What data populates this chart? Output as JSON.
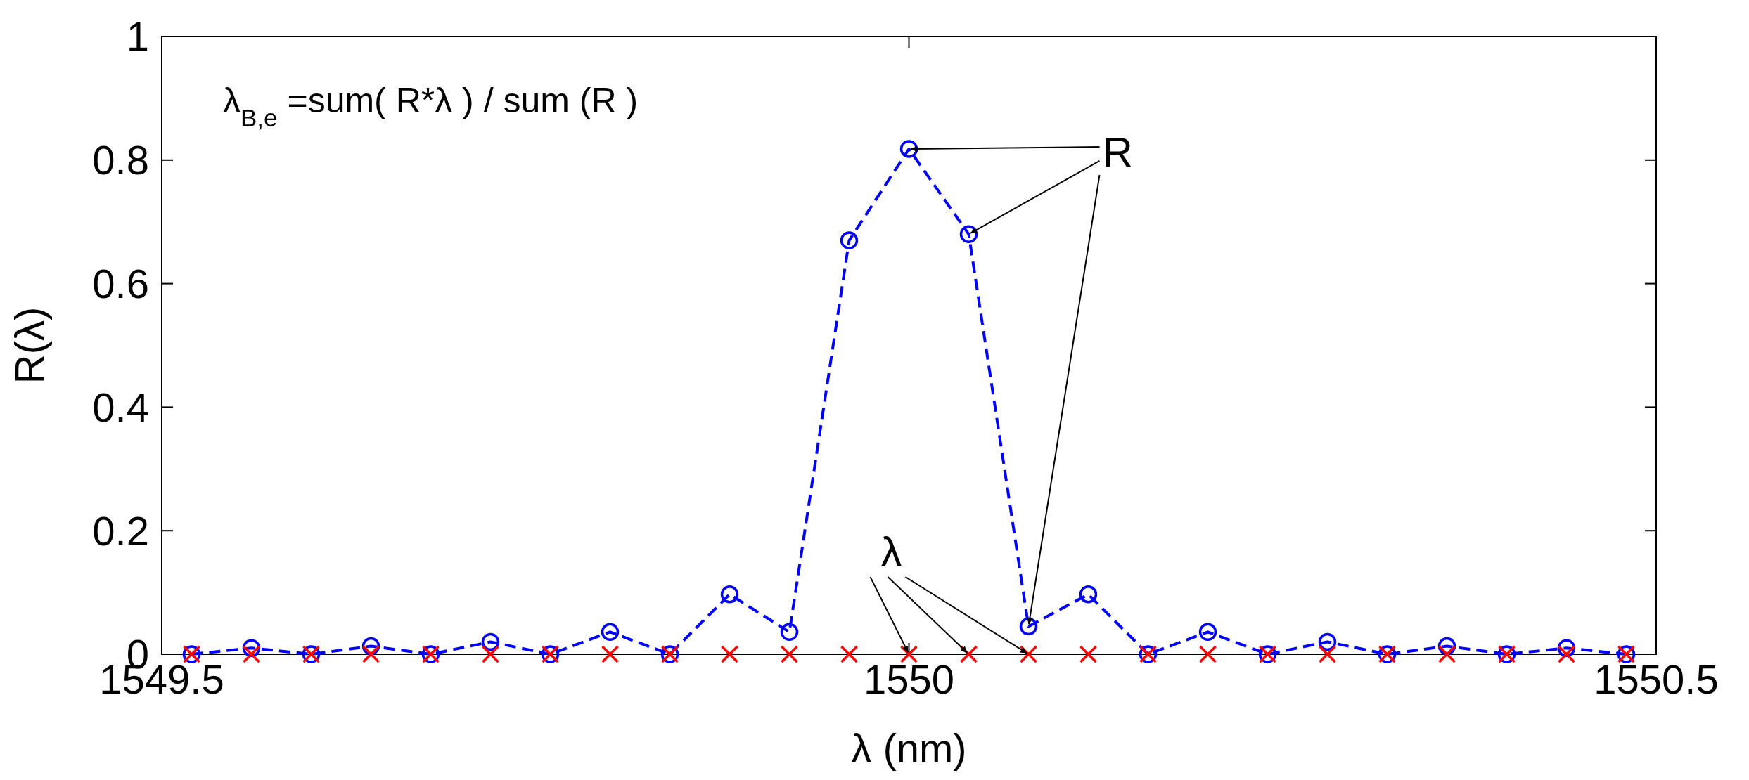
{
  "chart_data": {
    "type": "line",
    "xlabel": "λ (nm)",
    "ylabel": "R(λ)",
    "x": [
      1549.52,
      1549.56,
      1549.6,
      1549.64,
      1549.68,
      1549.72,
      1549.76,
      1549.8,
      1549.84,
      1549.88,
      1549.92,
      1549.96,
      1550,
      1550.04,
      1550.08,
      1550.12,
      1550.16,
      1550.2,
      1550.24,
      1550.28,
      1550.32,
      1550.36,
      1550.4,
      1550.44,
      1550.48
    ],
    "series": [
      {
        "color": "#0000ff",
        "marker": "circle",
        "line_style": "dashed",
        "values": [
          0,
          0.01,
          0,
          0.013,
          0,
          0.02,
          0,
          0.036,
          0,
          0.097,
          0.036,
          0.67,
          0.818,
          0.68,
          0.045,
          0.097,
          0,
          0.036,
          0,
          0.02,
          0,
          0.013,
          0,
          0.01,
          0
        ]
      },
      {
        "type": "scatter",
        "color": "#ff0000",
        "marker": "cross",
        "values": [
          0,
          0,
          0,
          0,
          0,
          0,
          0,
          0,
          0,
          0,
          0,
          0,
          0,
          0,
          0,
          0,
          0,
          0,
          0,
          0,
          0,
          0,
          0,
          0,
          0
        ]
      }
    ],
    "xlim": [
      1549.5,
      1550.5
    ],
    "xticks": [
      1549.5,
      1550,
      1550.5
    ],
    "ylim": [
      0,
      1
    ],
    "yticks": [
      0,
      0.2,
      0.4,
      0.6,
      0.8,
      1
    ],
    "annotations": [
      "λ$_{B,e}$ =sum( R*λ ) / sum (R )",
      {
        "text": "R",
        "x": 1550.08,
        "y": 0.045
      },
      {
        "text": "λ",
        "x": 1550.04,
        "y": 0
      }
    ]
  }
}
